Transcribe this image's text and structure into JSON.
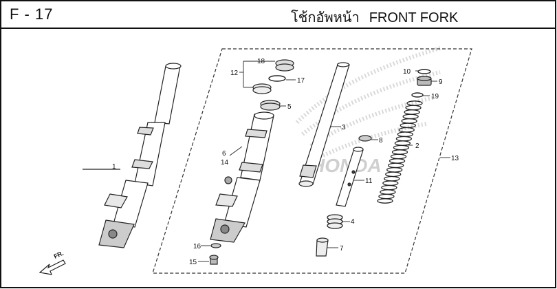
{
  "header": {
    "section_code": "F - 17",
    "title_thai": "โช้กอัพหน้า",
    "title_en": "FRONT FORK"
  },
  "watermark": "HONDA",
  "direction_label": "FR.",
  "callouts": [
    "1",
    "2",
    "3",
    "4",
    "5",
    "6",
    "7",
    "8",
    "9",
    "10",
    "11",
    "12",
    "13",
    "14",
    "15",
    "16",
    "17",
    "18",
    "19"
  ]
}
